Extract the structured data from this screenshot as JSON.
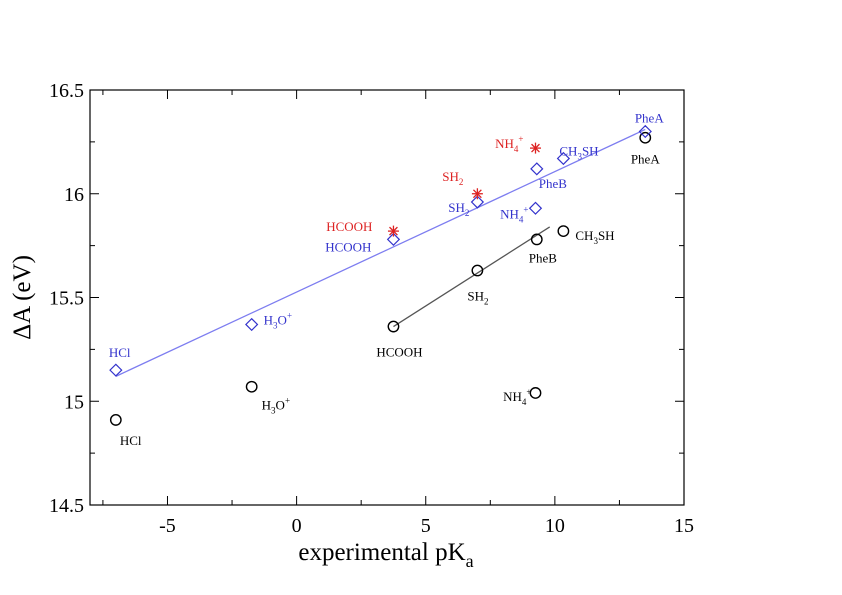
{
  "chart_data": {
    "type": "scatter",
    "xlabel": "experimental pK",
    "xlabel_sub": "a",
    "ylabel": "ΔA (eV)",
    "xlim": [
      -8,
      15
    ],
    "ylim": [
      14.5,
      16.5
    ],
    "x_ticks": [
      -5,
      0,
      5,
      10,
      15
    ],
    "y_ticks": [
      14.5,
      15,
      15.5,
      16,
      16.5
    ],
    "x_tick_labels": [
      "-5",
      "0",
      "5",
      "10",
      "15"
    ],
    "y_tick_labels": [
      "14.5",
      "15",
      "15.5",
      "16",
      "16.5"
    ],
    "grid": false,
    "colors": {
      "black": "#000000",
      "blue": "#3333cc",
      "red": "#dd2222",
      "blue_line": "#7d7df0",
      "gray_line": "#555555"
    },
    "series": [
      {
        "marker": "circle",
        "color": "#000000",
        "points": [
          {
            "x": -7.0,
            "y": 14.91,
            "label": "HCl"
          },
          {
            "x": -1.74,
            "y": 15.07,
            "label": "H3O+"
          },
          {
            "x": 3.75,
            "y": 15.36,
            "label": "HCOOH"
          },
          {
            "x": 7.0,
            "y": 15.63,
            "label": "SH2"
          },
          {
            "x": 9.25,
            "y": 15.04,
            "label": "NH4+"
          },
          {
            "x": 9.3,
            "y": 15.78,
            "label": "PheB"
          },
          {
            "x": 10.33,
            "y": 15.82,
            "label": "CH3SH"
          },
          {
            "x": 13.5,
            "y": 16.27,
            "label": "PheA"
          }
        ]
      },
      {
        "marker": "diamond",
        "color": "#3333cc",
        "points": [
          {
            "x": -7.0,
            "y": 15.15,
            "label": "HCl"
          },
          {
            "x": -1.74,
            "y": 15.37,
            "label": "H3O+"
          },
          {
            "x": 3.75,
            "y": 15.78,
            "label": "HCOOH"
          },
          {
            "x": 7.0,
            "y": 15.96,
            "label": "SH2"
          },
          {
            "x": 9.25,
            "y": 15.93,
            "label": "NH4+"
          },
          {
            "x": 9.3,
            "y": 16.12,
            "label": "PheB"
          },
          {
            "x": 10.33,
            "y": 16.17,
            "label": "CH3SH"
          },
          {
            "x": 13.5,
            "y": 16.3,
            "label": "PheA"
          }
        ]
      },
      {
        "marker": "star",
        "color": "#dd2222",
        "points": [
          {
            "x": 3.75,
            "y": 15.82,
            "label": "HCOOH"
          },
          {
            "x": 7.0,
            "y": 16.0,
            "label": "SH2"
          },
          {
            "x": 9.25,
            "y": 16.22,
            "label": "NH4+"
          }
        ]
      }
    ],
    "fit_lines": [
      {
        "color": "#7d7df0",
        "from": [
          -7.0,
          15.12
        ],
        "to": [
          13.5,
          16.31
        ]
      },
      {
        "color": "#555555",
        "from": [
          3.75,
          15.36
        ],
        "to": [
          9.8,
          15.84
        ]
      }
    ]
  }
}
